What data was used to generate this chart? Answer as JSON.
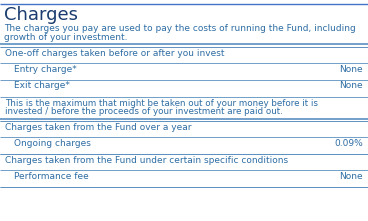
{
  "title": "Charges",
  "title_color": "#1a3c6e",
  "title_fontsize": 13,
  "intro_line1": "The charges you pay are used to pay the costs of running the Fund, including",
  "intro_line2": "growth of your investment.",
  "intro_color": "#2e6da4",
  "intro_fontsize": 6.5,
  "background_color": "#ffffff",
  "line_color": "#5a8fc0",
  "text_color": "#2e6da4",
  "section_fontsize": 6.5,
  "row_fontsize": 6.5,
  "note_fontsize": 6.3,
  "top_line_color": "#4472c4",
  "sections": [
    {
      "header": "One-off charges taken before or after you invest",
      "rows": [
        {
          "label": "Entry charge*",
          "value": "None"
        },
        {
          "label": "Exit charge*",
          "value": "None"
        }
      ],
      "note": "This is the maximum that might be taken out of your money before it is invested / before the proceeds of your investment are paid out."
    },
    {
      "header": "Charges taken from the Fund over a year",
      "rows": [
        {
          "label": "Ongoing charges",
          "value": "0.09%"
        }
      ],
      "note": null
    },
    {
      "header": "Charges taken from the Fund under certain specific conditions",
      "rows": [
        {
          "label": "Performance fee",
          "value": "None"
        }
      ],
      "note": null
    }
  ]
}
